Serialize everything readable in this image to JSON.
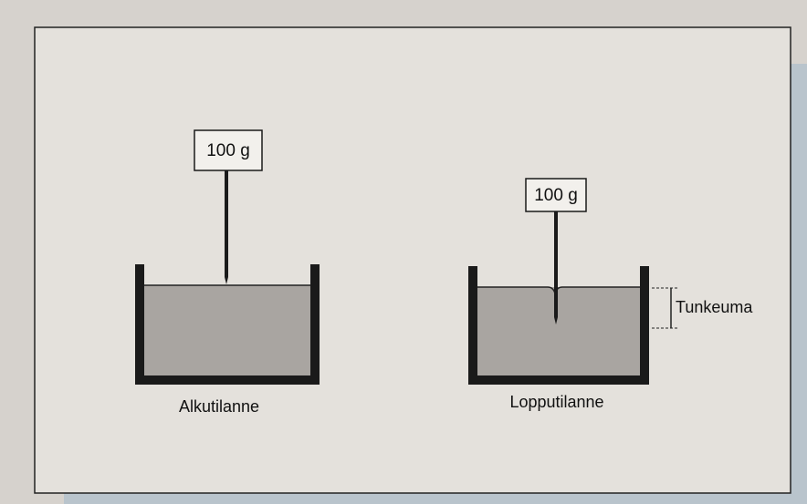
{
  "diagrams": [
    {
      "weight_label": "100 g",
      "caption": "Alkutilanne"
    },
    {
      "weight_label": "100 g",
      "caption": "Lopputilanne",
      "measure_label": "Tunkeuma"
    }
  ]
}
